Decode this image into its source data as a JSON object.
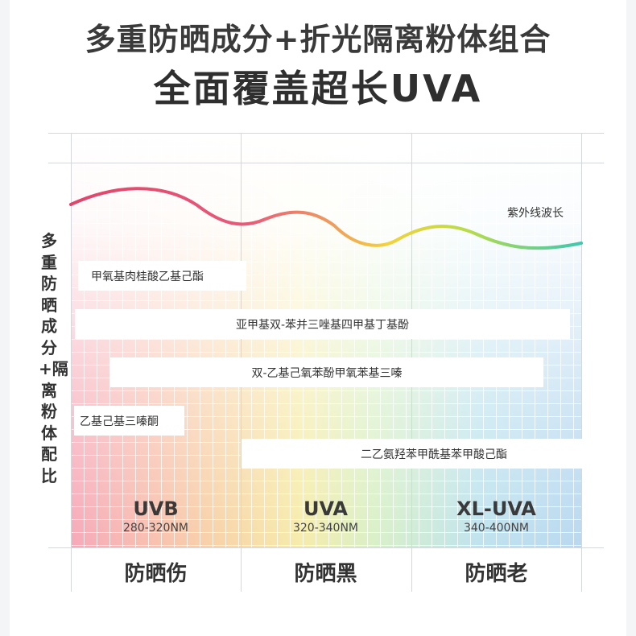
{
  "title_line1": "多重防晒成分+折光隔离粉体组合",
  "title_line2": "全面覆盖超长UVA",
  "wave_label": "紫外线波长",
  "side_label": "多重防晒成分+隔离粉体配比",
  "ingredients": [
    "甲氧基肉桂酸乙基己酯",
    "亚甲基双-苯并三唑基四甲基丁基酚",
    "双-乙基己氧苯酚甲氧苯基三嗪",
    "乙基己基三嗪酮",
    "二乙氨羟苯甲酰基苯甲酸己酯"
  ],
  "bands": [
    {
      "name": "UVB",
      "range": "280-320NM",
      "effect": "防晒伤"
    },
    {
      "name": "UVA",
      "range": "320-340NM",
      "effect": "防晒黑"
    },
    {
      "name": "XL-UVA",
      "range": "340-400NM",
      "effect": "防晒老"
    }
  ],
  "colors": {
    "wave_start": "#e0456a",
    "wave_mid": "#f5d23a",
    "wave_end": "#3fc7b0"
  }
}
